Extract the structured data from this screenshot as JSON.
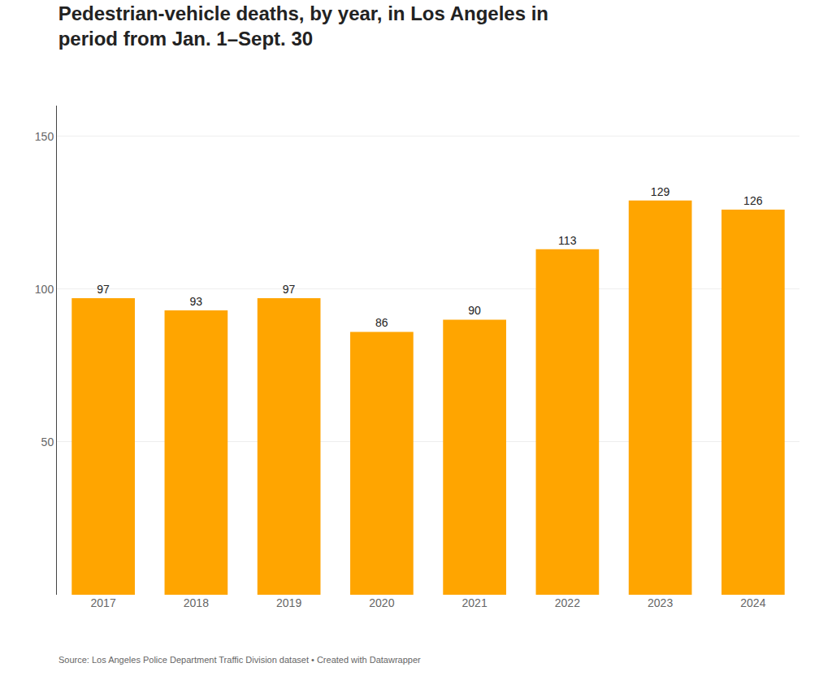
{
  "chart_data": {
    "type": "bar",
    "title": "Pedestrian-vehicle deaths, by year, in Los Angeles in",
    "subtitle": "period from Jan. 1–Sept. 30",
    "source": "Source: Los Angeles Police Department Traffic Division dataset • Created with Datawrapper",
    "categories": [
      "2017",
      "2018",
      "2019",
      "2020",
      "2021",
      "2022",
      "2023",
      "2024"
    ],
    "values": [
      97,
      93,
      97,
      86,
      90,
      113,
      129,
      126
    ],
    "color": "#FFA500",
    "ylim": [
      0,
      160
    ],
    "yticks": [
      50,
      100,
      150
    ],
    "grid": true,
    "data_labels": true
  }
}
